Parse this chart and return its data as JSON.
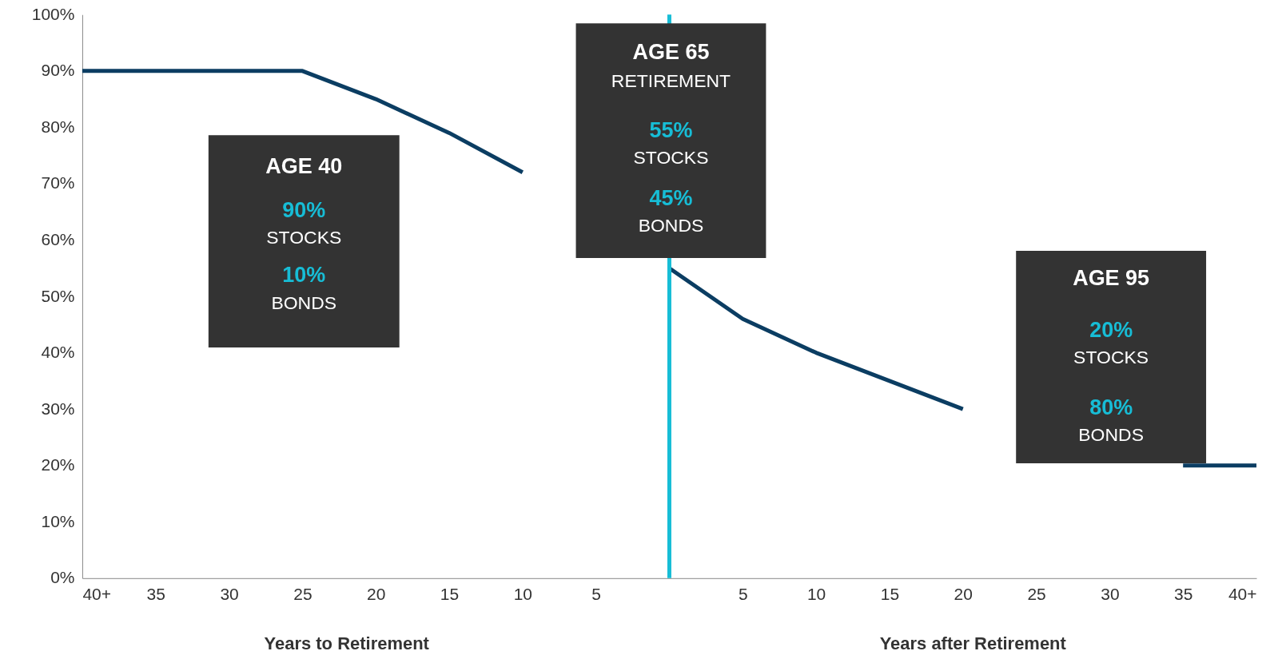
{
  "chart_data": {
    "type": "line",
    "x": [
      -40,
      -35,
      -30,
      -25,
      -20,
      -15,
      -10,
      -5,
      0,
      5,
      10,
      15,
      20,
      25,
      30,
      35,
      40
    ],
    "series": [
      {
        "color": "#0b3d62",
        "values": [
          90,
          90,
          90,
          90,
          85,
          79,
          72,
          null,
          55,
          46,
          40,
          35,
          30,
          null,
          null,
          20,
          20
        ]
      }
    ],
    "xlim": [
      -40,
      40
    ],
    "xticks": [
      {
        "value": -40,
        "label": "40+"
      },
      {
        "value": -35,
        "label": "35"
      },
      {
        "value": -30,
        "label": "30"
      },
      {
        "value": -25,
        "label": "25"
      },
      {
        "value": -20,
        "label": "20"
      },
      {
        "value": -15,
        "label": "15"
      },
      {
        "value": -10,
        "label": "10"
      },
      {
        "value": -5,
        "label": "5"
      },
      {
        "value": 5,
        "label": "5"
      },
      {
        "value": 10,
        "label": "10"
      },
      {
        "value": 15,
        "label": "15"
      },
      {
        "value": 20,
        "label": "20"
      },
      {
        "value": 25,
        "label": "25"
      },
      {
        "value": 30,
        "label": "30"
      },
      {
        "value": 35,
        "label": "35"
      },
      {
        "value": 40,
        "label": "40+"
      }
    ],
    "ylim": [
      0,
      100
    ],
    "yticks": [
      {
        "value": 0,
        "label": "0%"
      },
      {
        "value": 10,
        "label": "10%"
      },
      {
        "value": 20,
        "label": "20%"
      },
      {
        "value": 30,
        "label": "30%"
      },
      {
        "value": 40,
        "label": "40%"
      },
      {
        "value": 50,
        "label": "50%"
      },
      {
        "value": 60,
        "label": "60%"
      },
      {
        "value": 70,
        "label": "70%"
      },
      {
        "value": 80,
        "label": "80%"
      },
      {
        "value": 90,
        "label": "90%"
      },
      {
        "value": 100,
        "label": "100%"
      }
    ],
    "ref_lines": [
      {
        "axis": "x",
        "value": 0,
        "color": "#17bdd6"
      }
    ],
    "annotations": [
      "AGE 40",
      "90%",
      "STOCKS",
      "10%",
      "BONDS",
      "AGE 65",
      "RETIREMENT",
      "55%",
      "STOCKS",
      "45%",
      "BONDS",
      "AGE 95",
      "20%",
      "STOCKS",
      "80%",
      "BONDS",
      "Years to Retirement",
      "Years after Retirement"
    ],
    "grid": false,
    "marker": "none",
    "line_style": "solid"
  }
}
